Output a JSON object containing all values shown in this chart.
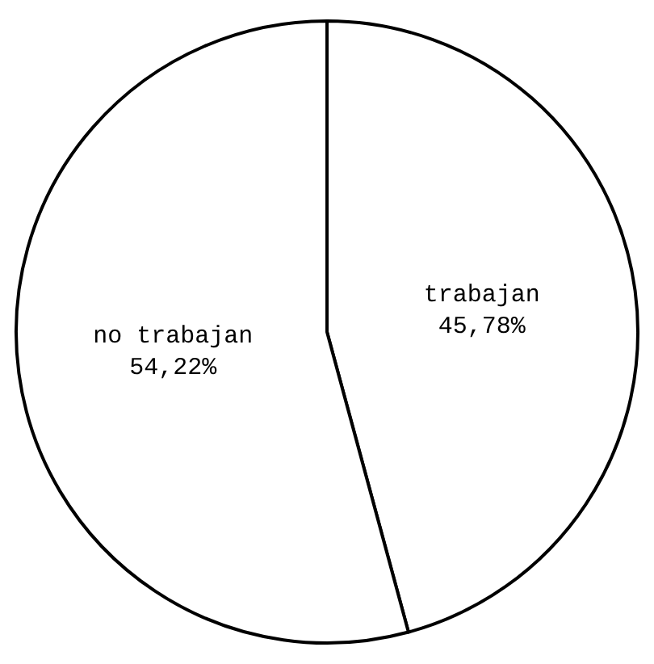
{
  "chart_data": {
    "type": "pie",
    "categories": [
      "trabajan",
      "no trabajan"
    ],
    "values": [
      45.78,
      54.22
    ],
    "value_labels": [
      "45,78%",
      "54,22%"
    ],
    "colors": [
      "#ffffff",
      "#ffffff"
    ],
    "legend": false
  }
}
